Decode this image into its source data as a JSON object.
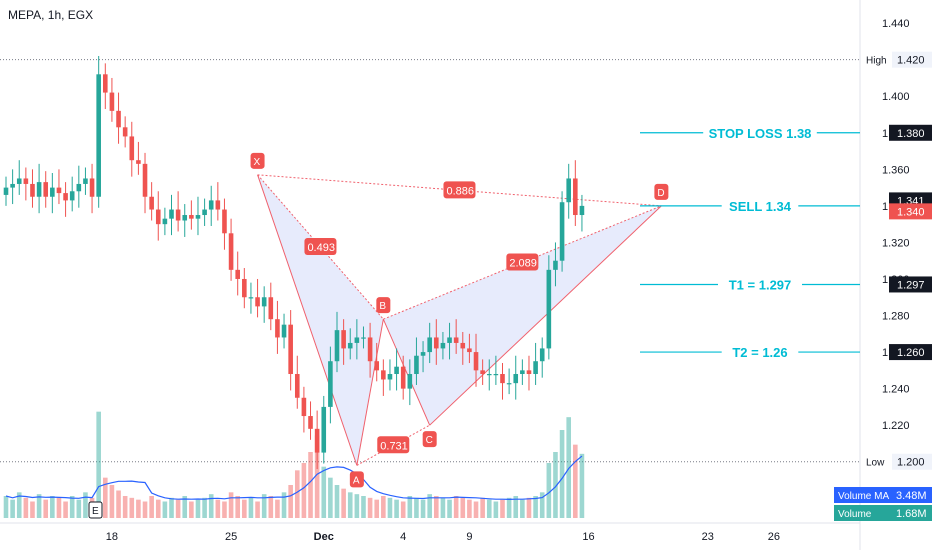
{
  "header": {
    "symbol_line": "MEPA, 1h, EGX"
  },
  "colors": {
    "up": "#26a69a",
    "down": "#ef5350",
    "pattern_fill": "#e3e8fb",
    "pattern_line": "#f0616d",
    "annotation": "#00bcd4",
    "volume_ma": "#2962ff",
    "axis_text": "#131722"
  },
  "chart_data": {
    "type": "candlestick",
    "y_axis": {
      "min": 1.19,
      "max": 1.445,
      "ticks": [
        "1.440",
        "1.420",
        "1.400",
        "1.380",
        "1.360",
        "1.340",
        "1.320",
        "1.300",
        "1.280",
        "1.260",
        "1.240",
        "1.220",
        "1.200"
      ],
      "tick_values": [
        1.44,
        1.42,
        1.4,
        1.38,
        1.36,
        1.34,
        1.32,
        1.3,
        1.28,
        1.26,
        1.24,
        1.22,
        1.2
      ]
    },
    "x_axis": {
      "ticks": [
        "18",
        "25",
        "Dec",
        "4",
        "9",
        "16",
        "23",
        "26"
      ],
      "tick_index": [
        16,
        34,
        48,
        60,
        70,
        88,
        106,
        116
      ]
    },
    "high_line": {
      "label": "High",
      "value": "1.420",
      "y": 1.42
    },
    "low_line": {
      "label": "Low",
      "value": "1.200",
      "y": 1.2
    },
    "closes": [
      1.35,
      1.352,
      1.355,
      1.352,
      1.345,
      1.353,
      1.345,
      1.35,
      1.347,
      1.343,
      1.348,
      1.352,
      1.355,
      1.345,
      1.412,
      1.402,
      1.392,
      1.383,
      1.378,
      1.365,
      1.363,
      1.345,
      1.338,
      1.33,
      1.333,
      1.338,
      1.332,
      1.335,
      1.333,
      1.335,
      1.338,
      1.343,
      1.338,
      1.325,
      1.305,
      1.3,
      1.29,
      1.29,
      1.285,
      1.29,
      1.278,
      1.268,
      1.275,
      1.248,
      1.235,
      1.225,
      1.218,
      1.205,
      1.23,
      1.255,
      1.272,
      1.262,
      1.265,
      1.268,
      1.268,
      1.255,
      1.25,
      1.245,
      1.248,
      1.252,
      1.24,
      1.248,
      1.258,
      1.26,
      1.268,
      1.262,
      1.265,
      1.268,
      1.265,
      1.262,
      1.26,
      1.25,
      1.248,
      1.248,
      1.248,
      1.243,
      1.243,
      1.248,
      1.25,
      1.248,
      1.255,
      1.262,
      1.305,
      1.31,
      1.342,
      1.355,
      1.335,
      1.34
    ],
    "volume": [
      12,
      10,
      14,
      11,
      9,
      13,
      10,
      12,
      11,
      9,
      12,
      10,
      14,
      11,
      58,
      22,
      18,
      15,
      12,
      11,
      10,
      9,
      12,
      10,
      9,
      11,
      10,
      12,
      9,
      10,
      11,
      13,
      10,
      9,
      14,
      12,
      10,
      11,
      9,
      13,
      12,
      10,
      14,
      18,
      26,
      30,
      36,
      45,
      28,
      22,
      18,
      16,
      14,
      13,
      12,
      11,
      10,
      12,
      11,
      10,
      9,
      12,
      11,
      10,
      13,
      12,
      11,
      10,
      12,
      11,
      10,
      9,
      11,
      10,
      9,
      10,
      11,
      12,
      10,
      11,
      12,
      14,
      30,
      36,
      48,
      55,
      40,
      35
    ],
    "volume_ma_label": "Volume MA",
    "volume_ma_value": "3.48M",
    "volume_label": "Volume",
    "volume_value": "1.68M",
    "pattern": {
      "points": [
        {
          "label": "X",
          "i": 38,
          "y": 1.357
        },
        {
          "label": "A",
          "i": 53,
          "y": 1.198
        },
        {
          "label": "B",
          "i": 57,
          "y": 1.278
        },
        {
          "label": "C",
          "i": 64,
          "y": 1.22
        },
        {
          "label": "D",
          "i": 99,
          "y": 1.34
        }
      ],
      "ratios": [
        {
          "label": "0.493",
          "between": [
            "X",
            "B"
          ]
        },
        {
          "label": "0.731",
          "between": [
            "A",
            "C"
          ]
        },
        {
          "label": "2.089",
          "between": [
            "B",
            "D"
          ]
        },
        {
          "label": "0.886",
          "between": [
            "X",
            "D"
          ]
        }
      ]
    },
    "annotations": [
      {
        "text": "STOP LOSS 1.38",
        "y": 1.38
      },
      {
        "text": "SELL 1.34",
        "y": 1.34
      },
      {
        "text": "T1 = 1.297",
        "y": 1.297
      },
      {
        "text": "T2 = 1.26",
        "y": 1.26
      }
    ],
    "price_tags": [
      {
        "text": "1.380",
        "y": 1.38,
        "kind": "dark"
      },
      {
        "text": "1.341",
        "y": 1.343,
        "kind": "dark"
      },
      {
        "text": "1.340",
        "y": 1.337,
        "kind": "red"
      },
      {
        "text": "1.297",
        "y": 1.297,
        "kind": "dark"
      },
      {
        "text": "1.260",
        "y": 1.26,
        "kind": "dark"
      }
    ],
    "marker": {
      "label": "E"
    }
  }
}
